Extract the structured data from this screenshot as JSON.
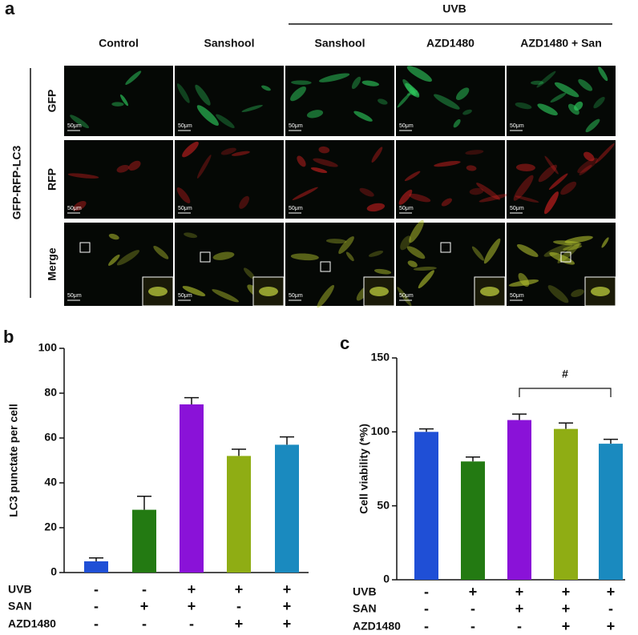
{
  "panel_labels": [
    "a",
    "b",
    "c"
  ],
  "panel_a": {
    "group_label": "UVB",
    "side_label": "GFP-RFP-LC3",
    "columns": [
      "Control",
      "Sanshool",
      "Sanshool",
      "AZD1480",
      "AZD1480 + San"
    ],
    "rows": [
      "GFP",
      "RFP",
      "Merge"
    ],
    "scale_label": "50μm"
  },
  "chart_data": [
    {
      "type": "bar",
      "ylabel": "LC3 punctate per cell",
      "values": [
        5,
        28,
        75,
        52,
        57
      ],
      "errors": [
        1.5,
        6,
        3,
        3,
        3.5
      ],
      "colors": [
        "#1f4fd6",
        "#237a12",
        "#8a12d8",
        "#8fad14",
        "#1a8abf"
      ],
      "ylim": [
        0,
        100
      ],
      "yticks": [
        0,
        20,
        40,
        60,
        80,
        100
      ],
      "conditions": [
        {
          "name": "UVB",
          "values": [
            "-",
            "-",
            "+",
            "+",
            "+"
          ]
        },
        {
          "name": "SAN",
          "values": [
            "-",
            "+",
            "+",
            "-",
            "+"
          ]
        },
        {
          "name": "AZD1480",
          "values": [
            "-",
            "-",
            "-",
            "+",
            "+"
          ]
        }
      ]
    },
    {
      "type": "bar",
      "ylabel": "Cell viability (*%)",
      "values": [
        100,
        80,
        108,
        102,
        92
      ],
      "errors": [
        2,
        3,
        4,
        4,
        3
      ],
      "colors": [
        "#1f4fd6",
        "#237a12",
        "#8a12d8",
        "#8fad14",
        "#1a8abf"
      ],
      "ylim": [
        0,
        150
      ],
      "yticks": [
        0,
        50,
        100,
        150
      ],
      "annotation": "#",
      "conditions": [
        {
          "name": "UVB",
          "values": [
            "-",
            "+",
            "+",
            "+",
            "+"
          ]
        },
        {
          "name": "SAN",
          "values": [
            "-",
            "-",
            "+",
            "+",
            "-"
          ]
        },
        {
          "name": "AZD1480",
          "values": [
            "-",
            "-",
            "-",
            "+",
            "+"
          ]
        }
      ]
    }
  ]
}
